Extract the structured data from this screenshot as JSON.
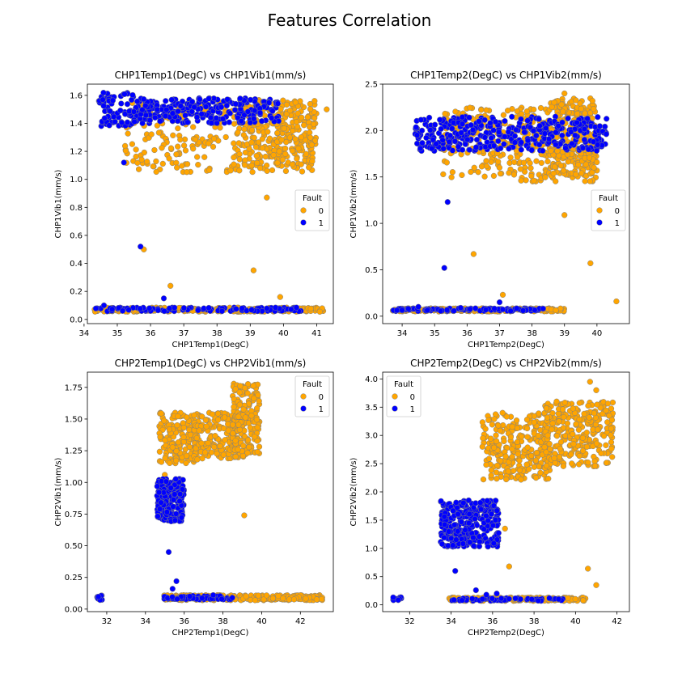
{
  "figure": {
    "suptitle": "Features Correlation"
  },
  "colors": {
    "fault0": "#FFA500",
    "fault1": "#0000FF",
    "edge": "#808080"
  },
  "legend": {
    "title": "Fault",
    "entries": [
      "0",
      "1"
    ]
  },
  "chart_data": [
    {
      "type": "scatter",
      "title": "CHP1Temp1(DegC) vs CHP1Vib1(mm/s)",
      "xlabel": "CHP1Temp1(DegC)",
      "ylabel": "CHP1Vib1(mm/s)",
      "xlim": [
        34.1,
        41.5
      ],
      "ylim": [
        -0.03,
        1.68
      ],
      "xticks": [
        34,
        35,
        36,
        37,
        38,
        39,
        40,
        41
      ],
      "yticks": [
        0.0,
        0.2,
        0.4,
        0.6,
        0.8,
        1.0,
        1.2,
        1.4,
        1.6
      ],
      "yticklabels": [
        "0.0",
        "0.2",
        "0.4",
        "0.6",
        "0.8",
        "1.0",
        "1.2",
        "1.4",
        "1.6"
      ],
      "legend_position": "center-right",
      "series": [
        {
          "name": "0",
          "clusters": [
            {
              "x": [
                35.2,
                41.0
              ],
              "y": [
                1.05,
                1.55
              ],
              "n": 300
            },
            {
              "x": [
                38.8,
                41.0
              ],
              "y": [
                1.08,
                1.58
              ],
              "n": 220
            },
            {
              "x": [
                34.3,
                41.2
              ],
              "y": [
                0.055,
                0.085
              ],
              "n": 230
            }
          ],
          "points": [
            [
              35.8,
              0.5
            ],
            [
              36.6,
              0.24
            ],
            [
              39.1,
              0.35
            ],
            [
              39.5,
              0.87
            ],
            [
              39.9,
              0.16
            ],
            [
              41.3,
              1.5
            ]
          ]
        },
        {
          "name": "1",
          "clusters": [
            {
              "x": [
                34.4,
                35.5
              ],
              "y": [
                1.38,
                1.62
              ],
              "n": 70
            },
            {
              "x": [
                35.5,
                39.9
              ],
              "y": [
                1.4,
                1.58
              ],
              "n": 260
            },
            {
              "x": [
                34.3,
                40.6
              ],
              "y": [
                0.058,
                0.085
              ],
              "n": 110
            }
          ],
          "points": [
            [
              35.2,
              1.12
            ],
            [
              35.7,
              0.52
            ],
            [
              36.4,
              0.15
            ],
            [
              34.6,
              0.1
            ]
          ]
        }
      ]
    },
    {
      "type": "scatter",
      "title": "CHP1Temp2(DegC) vs CHP1Vib2(mm/s)",
      "xlabel": "CHP1Temp2(DegC)",
      "ylabel": "CHP1Vib2(mm/s)",
      "xlim": [
        33.4,
        41.0
      ],
      "ylim": [
        -0.08,
        2.5
      ],
      "xticks": [
        34,
        35,
        36,
        37,
        38,
        39,
        40
      ],
      "yticks": [
        0.0,
        0.5,
        1.0,
        1.5,
        2.0,
        2.5
      ],
      "yticklabels": [
        "0.0",
        "0.5",
        "1.0",
        "1.5",
        "2.0",
        "2.5"
      ],
      "legend_position": "center-right",
      "series": [
        {
          "name": "0",
          "clusters": [
            {
              "x": [
                35.2,
                40.0
              ],
              "y": [
                1.45,
                2.25
              ],
              "n": 330
            },
            {
              "x": [
                38.5,
                40.0
              ],
              "y": [
                1.5,
                2.35
              ],
              "n": 180
            },
            {
              "x": [
                33.7,
                39.0
              ],
              "y": [
                0.05,
                0.085
              ],
              "n": 200
            }
          ],
          "points": [
            [
              36.2,
              0.67
            ],
            [
              37.1,
              0.23
            ],
            [
              39.0,
              1.09
            ],
            [
              39.8,
              0.57
            ],
            [
              40.6,
              0.16
            ],
            [
              39.0,
              2.4
            ]
          ]
        },
        {
          "name": "1",
          "clusters": [
            {
              "x": [
                34.4,
                40.3
              ],
              "y": [
                1.78,
                2.15
              ],
              "n": 380
            },
            {
              "x": [
                33.7,
                38.4
              ],
              "y": [
                0.055,
                0.085
              ],
              "n": 110
            }
          ],
          "points": [
            [
              35.4,
              1.23
            ],
            [
              35.3,
              0.52
            ],
            [
              37.0,
              0.15
            ],
            [
              34.5,
              0.1
            ],
            [
              35.8,
              0.09
            ]
          ]
        }
      ]
    },
    {
      "type": "scatter",
      "title": "CHP2Temp1(DegC) vs CHP2Vib1(mm/s)",
      "xlabel": "CHP2Temp1(DegC)",
      "ylabel": "CHP2Vib1(mm/s)",
      "xlim": [
        31.0,
        43.7
      ],
      "ylim": [
        -0.02,
        1.87
      ],
      "xticks": [
        32,
        34,
        36,
        38,
        40,
        42
      ],
      "yticks": [
        0.0,
        0.25,
        0.5,
        0.75,
        1.0,
        1.25,
        1.5,
        1.75
      ],
      "yticklabels": [
        "0.00",
        "0.25",
        "0.50",
        "0.75",
        "1.00",
        "1.25",
        "1.50",
        "1.75"
      ],
      "legend_position": "upper right",
      "series": [
        {
          "name": "0",
          "clusters": [
            {
              "x": [
                34.7,
                36.8
              ],
              "y": [
                1.15,
                1.55
              ],
              "n": 170
            },
            {
              "x": [
                36.5,
                38.8
              ],
              "y": [
                1.18,
                1.55
              ],
              "n": 160
            },
            {
              "x": [
                38.5,
                39.9
              ],
              "y": [
                1.2,
                1.78
              ],
              "n": 180
            },
            {
              "x": [
                34.9,
                43.2
              ],
              "y": [
                0.07,
                0.11
              ],
              "n": 250
            }
          ],
          "points": [
            [
              39.1,
              0.74
            ],
            [
              35.0,
              1.06
            ]
          ]
        },
        {
          "name": "1",
          "clusters": [
            {
              "x": [
                34.6,
                36.0
              ],
              "y": [
                0.69,
                1.03
              ],
              "n": 220
            },
            {
              "x": [
                31.5,
                31.8
              ],
              "y": [
                0.07,
                0.12
              ],
              "n": 15
            },
            {
              "x": [
                34.9,
                38.5
              ],
              "y": [
                0.075,
                0.105
              ],
              "n": 60
            }
          ],
          "points": [
            [
              35.2,
              0.45
            ],
            [
              35.6,
              0.22
            ],
            [
              35.4,
              0.16
            ],
            [
              37.5,
              0.11
            ]
          ]
        }
      ]
    },
    {
      "type": "scatter",
      "title": "CHP2Temp2(DegC) vs CHP2Vib2(mm/s)",
      "xlabel": "CHP2Temp2(DegC)",
      "ylabel": "CHP2Vib2(mm/s)",
      "xlim": [
        30.7,
        42.6
      ],
      "ylim": [
        -0.12,
        4.12
      ],
      "xticks": [
        32,
        34,
        36,
        38,
        40,
        42
      ],
      "yticks": [
        0.0,
        0.5,
        1.0,
        1.5,
        2.0,
        2.5,
        3.0,
        3.5,
        4.0
      ],
      "yticklabels": [
        "0.0",
        "0.5",
        "1.0",
        "1.5",
        "2.0",
        "2.5",
        "3.0",
        "3.5",
        "4.0"
      ],
      "legend_position": "upper left",
      "series": [
        {
          "name": "0",
          "clusters": [
            {
              "x": [
                35.5,
                38.8
              ],
              "y": [
                2.2,
                3.4
              ],
              "n": 260
            },
            {
              "x": [
                38.5,
                41.8
              ],
              "y": [
                2.45,
                3.6
              ],
              "n": 280
            },
            {
              "x": [
                33.9,
                40.5
              ],
              "y": [
                0.07,
                0.13
              ],
              "n": 200
            }
          ],
          "points": [
            [
              36.8,
              0.68
            ],
            [
              40.6,
              0.64
            ],
            [
              41.0,
              0.35
            ],
            [
              40.7,
              3.95
            ],
            [
              41.0,
              3.8
            ],
            [
              36.6,
              1.35
            ]
          ]
        },
        {
          "name": "1",
          "clusters": [
            {
              "x": [
                33.5,
                36.3
              ],
              "y": [
                1.02,
                1.85
              ],
              "n": 300
            },
            {
              "x": [
                31.2,
                31.6
              ],
              "y": [
                0.07,
                0.14
              ],
              "n": 12
            },
            {
              "x": [
                34.0,
                39.5
              ],
              "y": [
                0.07,
                0.12
              ],
              "n": 60
            }
          ],
          "points": [
            [
              34.2,
              0.6
            ],
            [
              35.2,
              0.26
            ],
            [
              36.2,
              0.2
            ],
            [
              35.7,
              0.18
            ]
          ]
        }
      ]
    }
  ]
}
